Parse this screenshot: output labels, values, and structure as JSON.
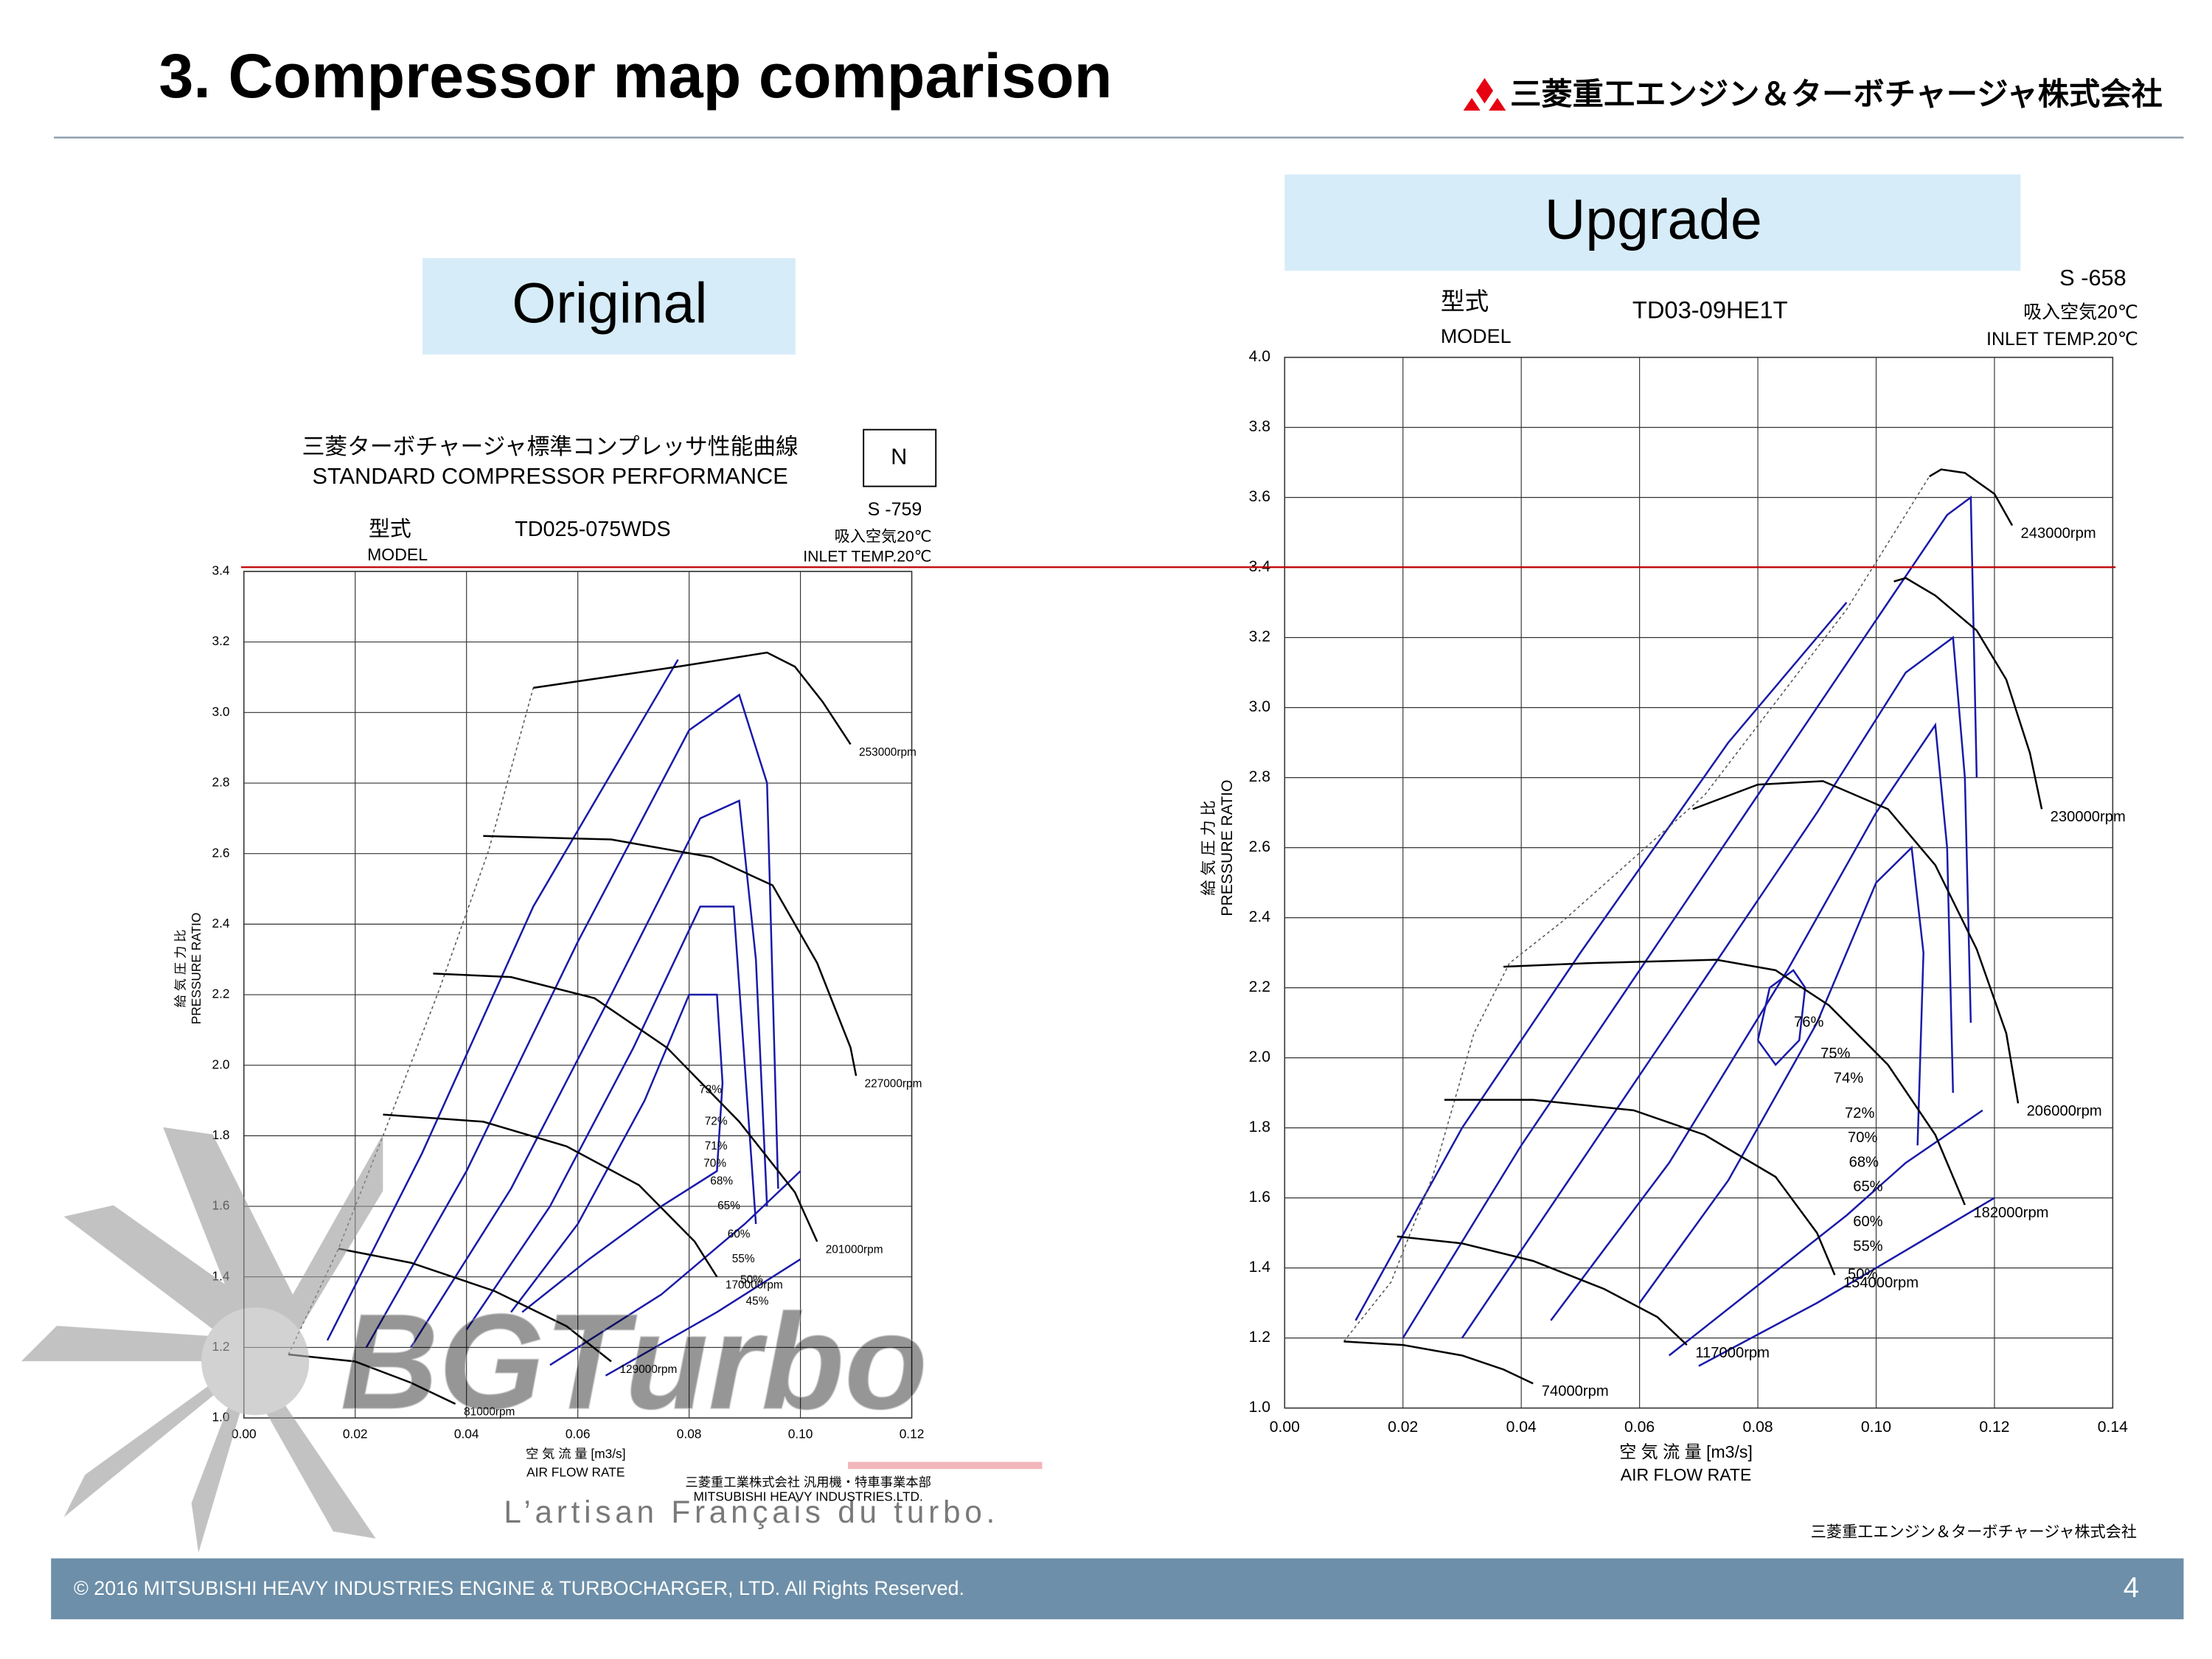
{
  "slide": {
    "title": "3. Compressor map comparison",
    "company": "三菱重工エンジン＆ターボチャージャ株式会社",
    "original_label": "Original",
    "upgrade_label": "Upgrade",
    "copyright": "© 2016 MITSUBISHI HEAVY INDUSTRIES ENGINE & TURBOCHARGER, LTD.  All Rights Reserved.",
    "page_number": "4"
  },
  "watermark": {
    "brand": "BGTurbo",
    "tagline": "L’artisan Français du turbo."
  },
  "chart_data": [
    {
      "type": "line",
      "title_jp": "三菱ターボチャージャ標準コンプレッサ性能曲線",
      "title": "STANDARD COMPRESSOR PERFORMANCE",
      "badge": "N",
      "spec_no": "S -759",
      "model_jp": "型式",
      "model_en": "MODEL",
      "model": "TD025-075WDS",
      "inlet_jp": "吸入空気20℃",
      "inlet_en": "INLET TEMP.20℃",
      "y_label_jp": "給 気 圧 力 比",
      "y_label": "PRESSURE RATIO",
      "x_label_jp": "空 気 流 量 [m3/s]",
      "x_label": "AIR FLOW RATE",
      "maker_jp": "三菱重工業株式会社 汎用機・特車事業本部",
      "maker_en": "MITSUBISHI HEAVY INDUSTRIES.LTD.",
      "xlim": [
        0,
        0.12
      ],
      "ylim": [
        1,
        3.4
      ],
      "xticks": [
        {
          "value": 0,
          "label": "0.00"
        },
        0.02,
        0.04,
        0.06,
        0.08,
        {
          "value": 0.1,
          "label": "0.10"
        },
        0.12
      ],
      "yticks": [
        {
          "value": 1,
          "label": "1.0"
        },
        1.2,
        1.4,
        1.6,
        1.8,
        {
          "value": 2,
          "label": "2.0"
        },
        2.2,
        2.4,
        2.6,
        2.8,
        {
          "value": 3,
          "label": "3.0"
        },
        3.2,
        3.4
      ],
      "grid": true,
      "series": [
        {
          "name": "253000rpm",
          "color": "#000000",
          "x": [
            0.052,
            0.078,
            0.094,
            0.099,
            0.104,
            0.109
          ],
          "values": [
            3.07,
            3.13,
            3.17,
            3.13,
            3.03,
            2.91
          ]
        },
        {
          "name": "227000rpm",
          "color": "#000000",
          "x": [
            0.043,
            0.066,
            0.084,
            0.095,
            0.103,
            0.109,
            0.11
          ],
          "values": [
            2.65,
            2.64,
            2.59,
            2.51,
            2.29,
            2.05,
            1.97
          ]
        },
        {
          "name": "201000rpm",
          "color": "#000000",
          "x": [
            0.034,
            0.048,
            0.063,
            0.076,
            0.089,
            0.099,
            0.103
          ],
          "values": [
            2.26,
            2.25,
            2.19,
            2.05,
            1.84,
            1.64,
            1.5
          ]
        },
        {
          "name": "170000rpm",
          "color": "#000000",
          "x": [
            0.025,
            0.043,
            0.058,
            0.071,
            0.081,
            0.085
          ],
          "values": [
            1.86,
            1.84,
            1.77,
            1.66,
            1.5,
            1.4
          ]
        },
        {
          "name": "129000rpm",
          "color": "#000000",
          "x": [
            0.017,
            0.03,
            0.045,
            0.058,
            0.066
          ],
          "values": [
            1.48,
            1.44,
            1.36,
            1.26,
            1.16
          ]
        },
        {
          "name": "81000rpm",
          "color": "#000000",
          "x": [
            0.008,
            0.02,
            0.03,
            0.038
          ],
          "values": [
            1.18,
            1.16,
            1.1,
            1.04
          ]
        }
      ],
      "surge_line": {
        "color": "#555555",
        "x": [
          0.008,
          0.017,
          0.025,
          0.035,
          0.044,
          0.052
        ],
        "values": [
          1.18,
          1.48,
          1.8,
          2.21,
          2.61,
          3.07
        ]
      },
      "contour_color": "#1a1aa8",
      "contours": [
        {
          "x": [
            0.015,
            0.032,
            0.052,
            0.078
          ],
          "values": [
            1.22,
            1.75,
            2.45,
            3.15
          ]
        },
        {
          "x": [
            0.022,
            0.04,
            0.06,
            0.08,
            0.089,
            0.094,
            0.096
          ],
          "values": [
            1.2,
            1.7,
            2.35,
            2.95,
            3.05,
            2.8,
            1.65
          ]
        },
        {
          "x": [
            0.03,
            0.048,
            0.066,
            0.082,
            0.089,
            0.092,
            0.094
          ],
          "values": [
            1.2,
            1.65,
            2.2,
            2.7,
            2.75,
            2.3,
            1.6
          ]
        },
        {
          "x": [
            0.04,
            0.055,
            0.07,
            0.082,
            0.088,
            0.09,
            0.092
          ],
          "values": [
            1.25,
            1.6,
            2.05,
            2.45,
            2.45,
            2.0,
            1.55
          ]
        },
        {
          "x": [
            0.048,
            0.06,
            0.072,
            0.08,
            0.085,
            0.086,
            0.085,
            0.075,
            0.062,
            0.05
          ],
          "values": [
            1.3,
            1.55,
            1.9,
            2.2,
            2.2,
            1.95,
            1.7,
            1.6,
            1.45,
            1.3
          ]
        },
        {
          "x": [
            0.055,
            0.075,
            0.09,
            0.1
          ],
          "values": [
            1.15,
            1.35,
            1.55,
            1.7
          ]
        },
        {
          "x": [
            0.065,
            0.085,
            0.1
          ],
          "values": [
            1.12,
            1.3,
            1.45
          ]
        }
      ],
      "annotations": [
        {
          "text": "73%",
          "x": 0.0818,
          "y": 1.93
        },
        {
          "text": "72%",
          "x": 0.0828,
          "y": 1.84
        },
        {
          "text": "71%",
          "x": 0.0828,
          "y": 1.77
        },
        {
          "text": "70%",
          "x": 0.0826,
          "y": 1.72
        },
        {
          "text": "68%",
          "x": 0.0838,
          "y": 1.67
        },
        {
          "text": "65%",
          "x": 0.0851,
          "y": 1.6
        },
        {
          "text": "60%",
          "x": 0.0869,
          "y": 1.52
        },
        {
          "text": "55%",
          "x": 0.0877,
          "y": 1.45
        },
        {
          "text": "50%",
          "x": 0.0892,
          "y": 1.39
        },
        {
          "text": "45%",
          "x": 0.0902,
          "y": 1.33
        }
      ]
    },
    {
      "type": "line",
      "spec_no": "S -658",
      "model_jp": "型式",
      "model_en": "MODEL",
      "model": "TD03-09HE1T",
      "inlet_jp": "吸入空気20℃",
      "inlet_en": "INLET TEMP.20℃",
      "y_label_jp": "給 気 圧 力 比",
      "y_label": "PRESSURE RATIO",
      "x_label_jp": "空 気 流 量 [m3/s]",
      "x_label": "AIR FLOW RATE",
      "maker_jp": "三菱重工エンジン＆ターボチャージャ株式会社",
      "xlim": [
        0,
        0.14
      ],
      "ylim": [
        1,
        4
      ],
      "xticks": [
        {
          "value": 0,
          "label": "0.00"
        },
        0.02,
        0.04,
        0.06,
        0.08,
        {
          "value": 0.1,
          "label": "0.10"
        },
        0.12,
        0.14
      ],
      "yticks": [
        {
          "value": 1,
          "label": "1.0"
        },
        1.2,
        1.4,
        1.6,
        1.8,
        {
          "value": 2,
          "label": "2.0"
        },
        2.2,
        2.4,
        2.6,
        2.8,
        {
          "value": 3,
          "label": "3.0"
        },
        3.2,
        3.4,
        3.6,
        3.8,
        {
          "value": 4,
          "label": "4.0"
        }
      ],
      "grid": true,
      "series": [
        {
          "name": "243000rpm",
          "color": "#000000",
          "x": [
            0.109,
            0.111,
            0.115,
            0.12,
            0.123
          ],
          "values": [
            3.66,
            3.68,
            3.67,
            3.61,
            3.52
          ]
        },
        {
          "name": "230000rpm",
          "color": "#000000",
          "x": [
            0.103,
            0.105,
            0.11,
            0.117,
            0.122,
            0.126,
            0.128
          ],
          "values": [
            3.36,
            3.37,
            3.32,
            3.22,
            3.08,
            2.87,
            2.71
          ]
        },
        {
          "name": "206000rpm",
          "color": "#000000",
          "x": [
            0.069,
            0.08,
            0.091,
            0.102,
            0.11,
            0.117,
            0.122,
            0.124
          ],
          "values": [
            2.71,
            2.78,
            2.79,
            2.71,
            2.55,
            2.31,
            2.07,
            1.87
          ]
        },
        {
          "name": "182000rpm",
          "color": "#000000",
          "x": [
            0.037,
            0.051,
            0.073,
            0.083,
            0.092,
            0.102,
            0.11,
            0.115
          ],
          "values": [
            2.26,
            2.27,
            2.28,
            2.25,
            2.15,
            1.98,
            1.78,
            1.58
          ]
        },
        {
          "name": "154000rpm",
          "color": "#000000",
          "x": [
            0.027,
            0.042,
            0.059,
            0.071,
            0.083,
            0.09,
            0.093
          ],
          "values": [
            1.88,
            1.88,
            1.85,
            1.78,
            1.66,
            1.5,
            1.38
          ]
        },
        {
          "name": "117000rpm",
          "color": "#000000",
          "x": [
            0.019,
            0.03,
            0.042,
            0.054,
            0.063,
            0.068
          ],
          "values": [
            1.49,
            1.47,
            1.42,
            1.34,
            1.26,
            1.18
          ]
        },
        {
          "name": "74000rpm",
          "color": "#000000",
          "x": [
            0.01,
            0.02,
            0.03,
            0.037,
            0.042
          ],
          "values": [
            1.19,
            1.18,
            1.15,
            1.11,
            1.07
          ]
        }
      ],
      "surge_line": {
        "color": "#555555",
        "x": [
          0.01,
          0.018,
          0.025,
          0.032,
          0.038,
          0.047,
          0.071,
          0.095,
          0.109
        ],
        "values": [
          1.19,
          1.36,
          1.66,
          2.07,
          2.27,
          2.39,
          2.75,
          3.28,
          3.66
        ]
      },
      "contour_color": "#1a1aa8",
      "contours": [
        {
          "x": [
            0.012,
            0.03,
            0.05,
            0.075,
            0.095
          ],
          "values": [
            1.25,
            1.8,
            2.3,
            2.9,
            3.3
          ]
        },
        {
          "x": [
            0.02,
            0.04,
            0.06,
            0.08,
            0.1,
            0.112,
            0.116,
            0.117
          ],
          "values": [
            1.2,
            1.75,
            2.25,
            2.75,
            3.25,
            3.55,
            3.6,
            2.8
          ]
        },
        {
          "x": [
            0.03,
            0.05,
            0.07,
            0.09,
            0.105,
            0.113,
            0.115,
            0.116
          ],
          "values": [
            1.2,
            1.7,
            2.2,
            2.7,
            3.1,
            3.2,
            2.8,
            2.1
          ]
        },
        {
          "x": [
            0.045,
            0.065,
            0.085,
            0.1,
            0.11,
            0.112,
            0.113
          ],
          "values": [
            1.25,
            1.7,
            2.25,
            2.7,
            2.95,
            2.6,
            1.9
          ]
        },
        {
          "x": [
            0.06,
            0.075,
            0.09,
            0.1,
            0.106,
            0.108,
            0.107
          ],
          "values": [
            1.3,
            1.65,
            2.1,
            2.5,
            2.6,
            2.3,
            1.75
          ]
        },
        {
          "x": [
            0.08,
            0.082,
            0.086,
            0.088,
            0.087,
            0.083,
            0.08
          ],
          "values": [
            2.05,
            2.2,
            2.25,
            2.2,
            2.05,
            1.98,
            2.05
          ]
        },
        {
          "x": [
            0.065,
            0.08,
            0.095,
            0.105,
            0.118
          ],
          "values": [
            1.15,
            1.35,
            1.55,
            1.7,
            1.85
          ]
        },
        {
          "x": [
            0.07,
            0.09,
            0.11,
            0.12
          ],
          "values": [
            1.12,
            1.3,
            1.5,
            1.6
          ]
        }
      ],
      "annotations": [
        {
          "text": "76%",
          "x": 0.0861,
          "y": 2.1
        },
        {
          "text": "75%",
          "x": 0.0906,
          "y": 2.01
        },
        {
          "text": "74%",
          "x": 0.0928,
          "y": 1.94
        },
        {
          "text": "72%",
          "x": 0.0947,
          "y": 1.84
        },
        {
          "text": "70%",
          "x": 0.0952,
          "y": 1.77
        },
        {
          "text": "68%",
          "x": 0.0954,
          "y": 1.7
        },
        {
          "text": "65%",
          "x": 0.0961,
          "y": 1.63
        },
        {
          "text": "60%",
          "x": 0.0961,
          "y": 1.53
        },
        {
          "text": "55%",
          "x": 0.0961,
          "y": 1.46
        },
        {
          "text": "50%",
          "x": 0.0952,
          "y": 1.38
        }
      ]
    }
  ]
}
